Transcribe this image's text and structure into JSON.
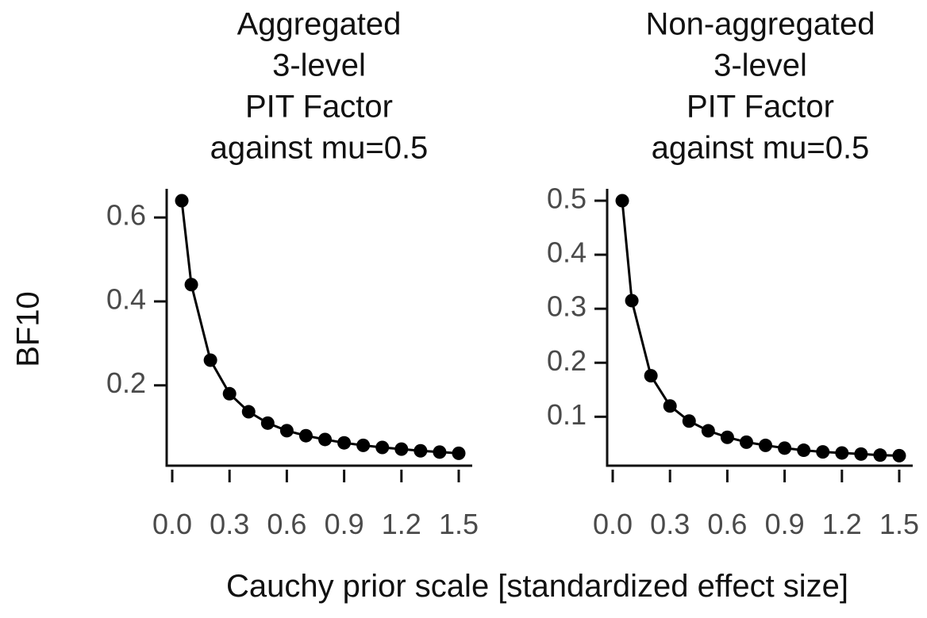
{
  "figure": {
    "ylabel": "BF10",
    "xlabel": "Cauchy prior scale [standardized effect size]"
  },
  "chart_data": [
    {
      "type": "line",
      "title": [
        "Aggregated",
        "3-level",
        "PIT Factor",
        "against mu=0.5"
      ],
      "xlabel": "Cauchy prior scale [standardized effect size]",
      "ylabel": "BF10",
      "xlim": [
        0.0,
        1.5
      ],
      "ylim": [
        0.035,
        0.64
      ],
      "xticks": [
        0.0,
        0.3,
        0.6,
        0.9,
        1.2,
        1.5
      ],
      "xtick_labels": [
        "0.0",
        "0.3",
        "0.6",
        "0.9",
        "1.2",
        "1.5"
      ],
      "yticks": [
        0.2,
        0.4,
        0.6
      ],
      "ytick_labels": [
        "0.2",
        "0.4",
        "0.6"
      ],
      "x": [
        0.05,
        0.1,
        0.2,
        0.3,
        0.4,
        0.5,
        0.6,
        0.7,
        0.8,
        0.9,
        1.0,
        1.1,
        1.2,
        1.3,
        1.4,
        1.5
      ],
      "y": [
        0.64,
        0.44,
        0.26,
        0.18,
        0.137,
        0.11,
        0.092,
        0.08,
        0.071,
        0.063,
        0.057,
        0.052,
        0.048,
        0.044,
        0.041,
        0.038
      ],
      "grid": false,
      "marker": "circle"
    },
    {
      "type": "line",
      "title": [
        "Non-aggregated",
        "3-level",
        "PIT Factor",
        "against mu=0.5"
      ],
      "xlabel": "Cauchy prior scale [standardized effect size]",
      "ylabel": "BF10",
      "xlim": [
        0.0,
        1.5
      ],
      "ylim": [
        0.03,
        0.5
      ],
      "xticks": [
        0.0,
        0.3,
        0.6,
        0.9,
        1.2,
        1.5
      ],
      "xtick_labels": [
        "0.0",
        "0.3",
        "0.6",
        "0.9",
        "1.2",
        "1.5"
      ],
      "yticks": [
        0.1,
        0.2,
        0.3,
        0.4,
        0.5
      ],
      "ytick_labels": [
        "0.1",
        "0.2",
        "0.3",
        "0.4",
        "0.5"
      ],
      "x": [
        0.05,
        0.1,
        0.2,
        0.3,
        0.4,
        0.5,
        0.6,
        0.7,
        0.8,
        0.9,
        1.0,
        1.1,
        1.2,
        1.3,
        1.4,
        1.5
      ],
      "y": [
        0.5,
        0.315,
        0.176,
        0.12,
        0.092,
        0.074,
        0.062,
        0.053,
        0.047,
        0.042,
        0.038,
        0.035,
        0.033,
        0.031,
        0.029,
        0.028
      ],
      "grid": false,
      "marker": "circle"
    }
  ]
}
